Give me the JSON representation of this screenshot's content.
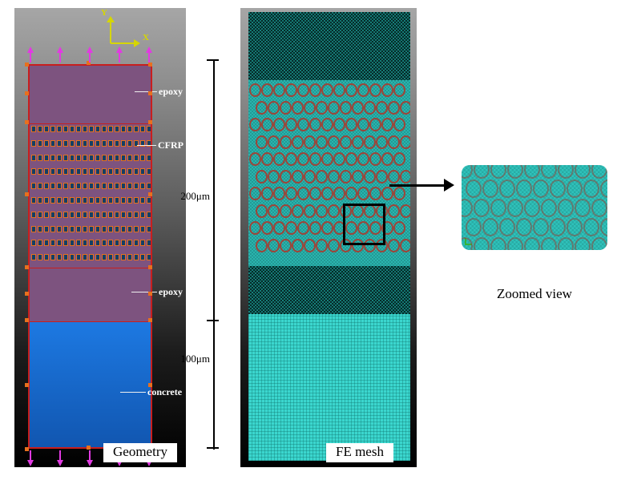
{
  "figure": {
    "geometry_panel": {
      "caption": "Geometry",
      "axis": {
        "y": "Y",
        "x": "X"
      },
      "layer_labels": {
        "epoxy_top": "epoxy",
        "cfrp": "CFRP",
        "epoxy_bottom": "epoxy",
        "concrete": "concrete"
      },
      "dimension_labels": {
        "upper": "200μm",
        "lower": "100μm"
      },
      "cfrp_pattern": {
        "rows": 10,
        "cols": 19
      }
    },
    "mesh_panel": {
      "caption": "FE mesh",
      "fiber_grid": {
        "rows": 10,
        "cols": 13
      }
    },
    "zoomed_panel": {
      "caption": "Zoomed view",
      "circle_grid": {
        "rows": 5,
        "cols": 9
      }
    },
    "colors": {
      "epoxy_purple": "#7d537f",
      "concrete_blue": "#1a6fd8",
      "outline_red": "#c81e1e",
      "seed_orange": "#e8701e",
      "mesh_teal": "#2ab4ae",
      "fiber_ring_red": "#9e4438",
      "load_arrow_magenta": "#e23ae2",
      "axis_yellow": "#d6d600"
    }
  }
}
